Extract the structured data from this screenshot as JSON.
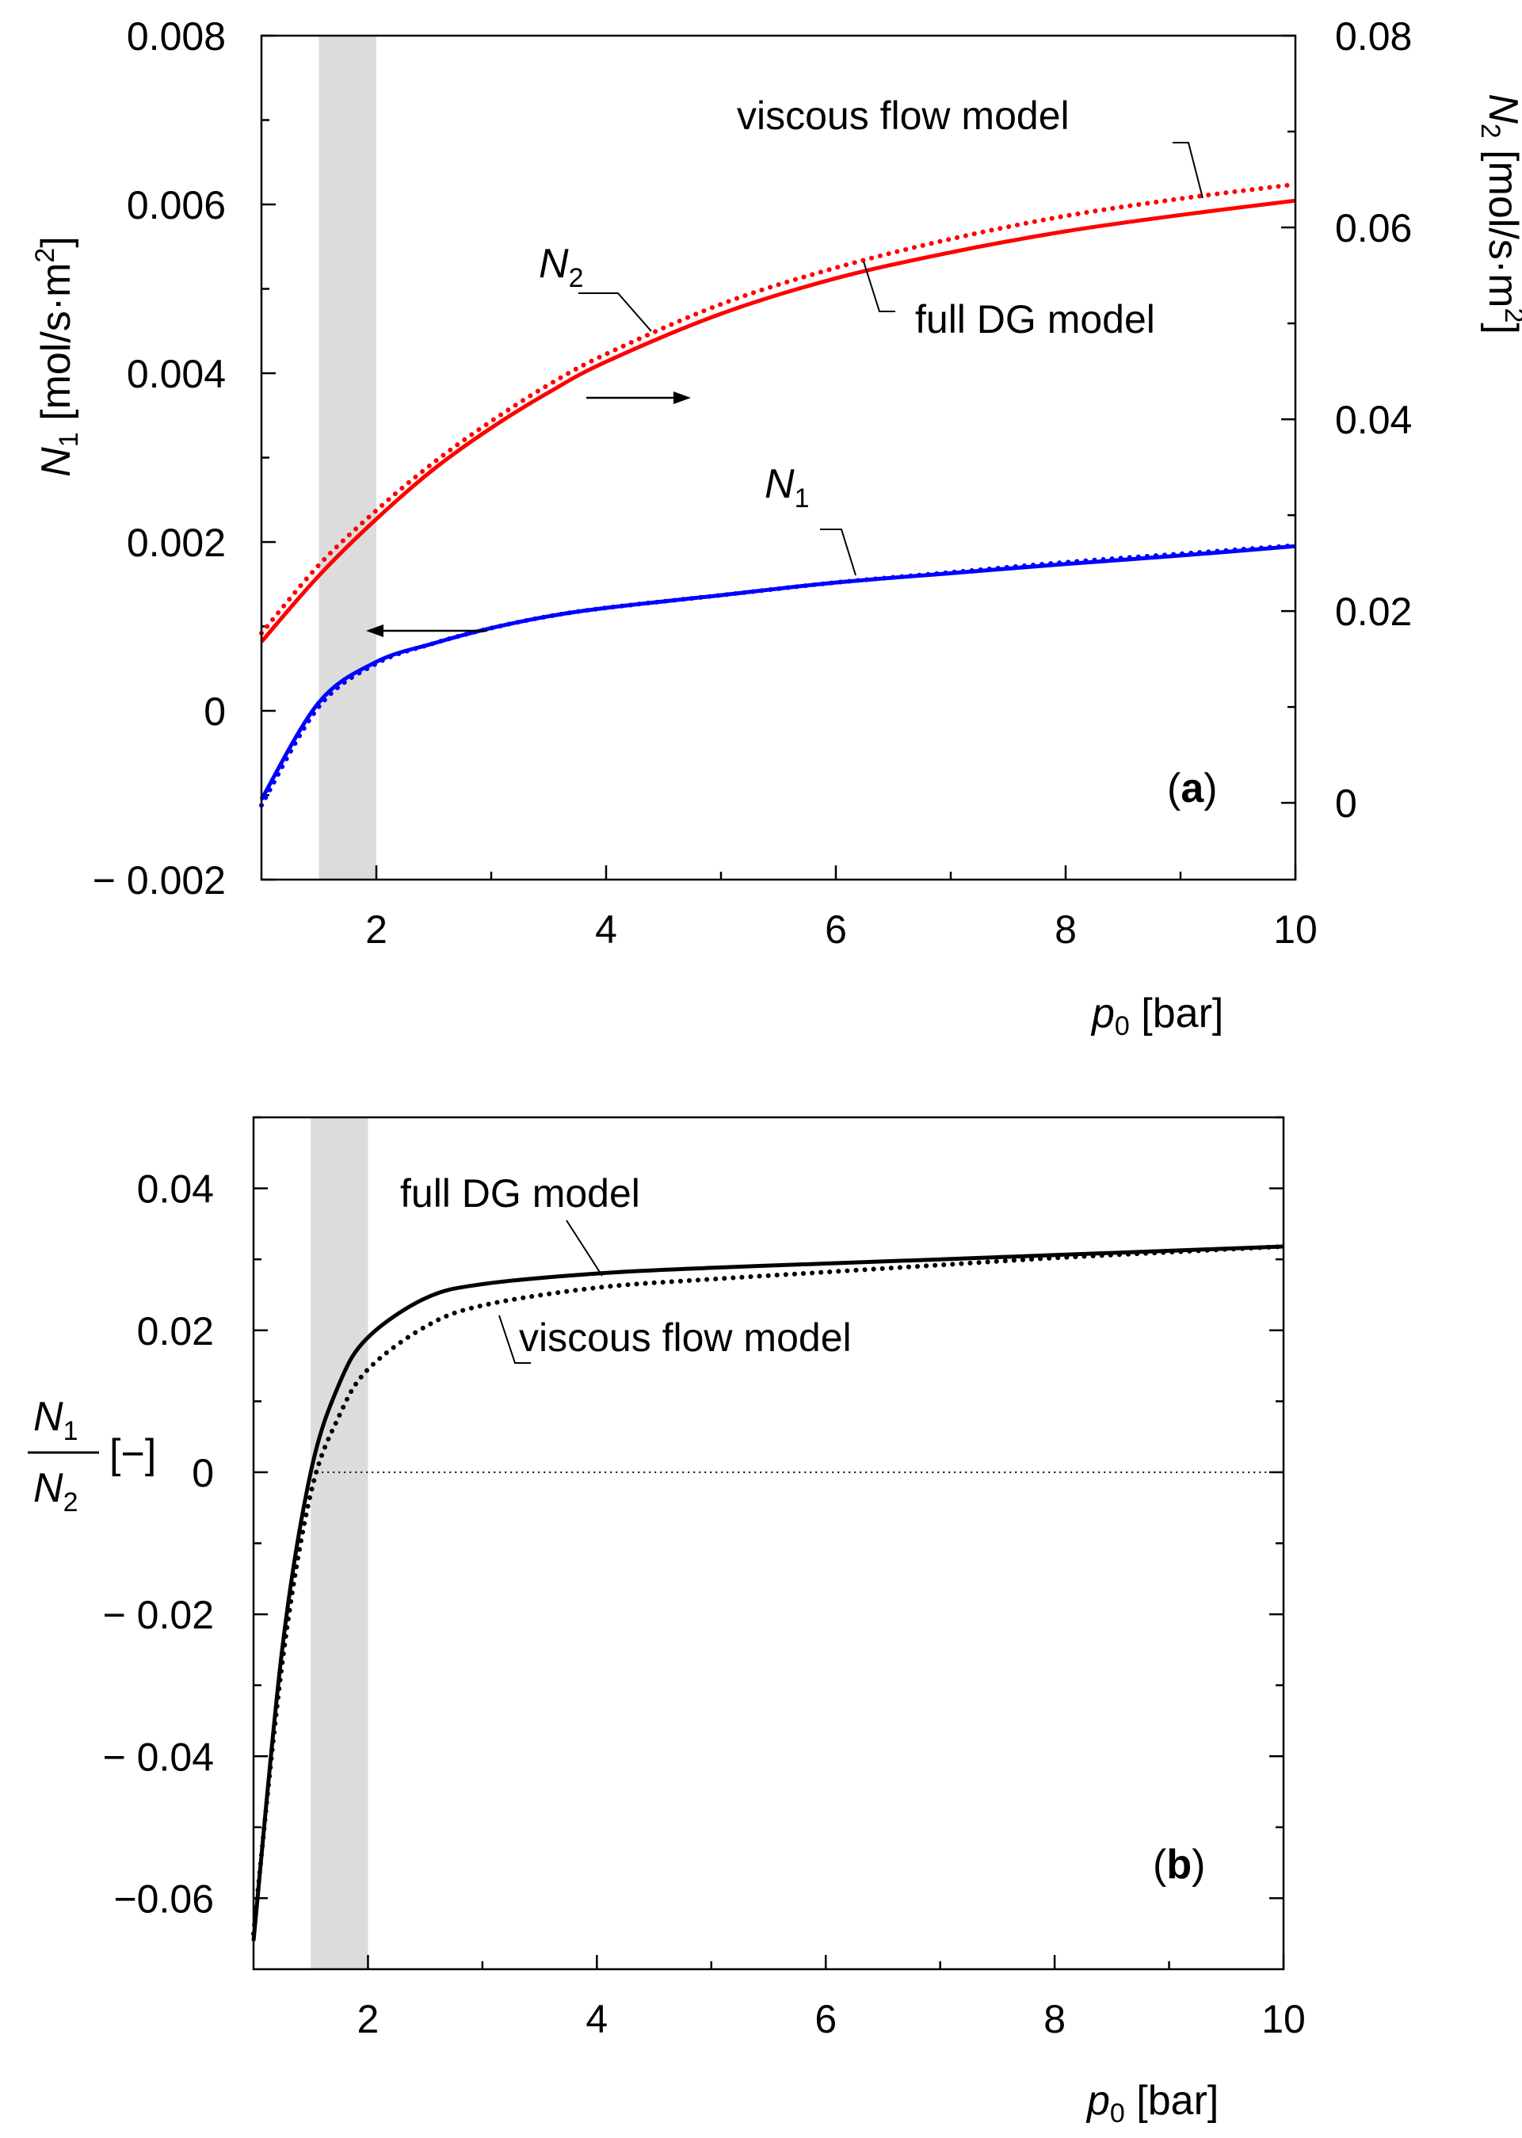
{
  "chart_data": [
    {
      "type": "line",
      "panel_label": "a",
      "panel_label_open": "(",
      "panel_label_close": ")",
      "xlabel_symbol": "p",
      "xlabel_sub": "0",
      "xlabel_unit": " [bar]",
      "xlim": [
        1,
        10
      ],
      "x_ticks": [
        2,
        4,
        6,
        8,
        10
      ],
      "x_tick_labels": [
        "2",
        "4",
        "6",
        "8",
        "10"
      ],
      "ylim_left": [
        -0.002,
        0.008
      ],
      "y_ticks_left": [
        -0.002,
        0,
        0.002,
        0.004,
        0.006,
        0.008
      ],
      "y_tick_labels_left": [
        "− 0.002",
        "0",
        "0.002",
        "0.004",
        "0.006",
        "0.008"
      ],
      "ylabel_left_symbol": "N",
      "ylabel_left_sub": "1",
      "ylabel_left_unit": " [mol/s·m",
      "ylabel_left_sup": "2",
      "ylabel_left_close": "]",
      "ylim_right": [
        -0.008,
        0.08
      ],
      "y_ticks_right": [
        0,
        0.02,
        0.04,
        0.06,
        0.08
      ],
      "y_tick_labels_right": [
        "0",
        "0.02",
        "0.04",
        "0.06",
        "0.08"
      ],
      "ylabel_right_symbol": "N",
      "ylabel_right_sub": "2",
      "ylabel_right_unit": " [mol/s·m",
      "ylabel_right_sup": "2",
      "ylabel_right_close": "]",
      "shaded_band_x": [
        1.5,
        2.0
      ],
      "x": [
        1.0,
        1.5,
        2.0,
        2.5,
        3.0,
        3.5,
        4.0,
        5.0,
        6.0,
        7.0,
        8.0,
        9.0,
        10.0
      ],
      "series": [
        {
          "name": "N1 full DG model",
          "axis": "left",
          "style": "solid",
          "color": "#0000ff",
          "values": [
            -0.00105,
            0.0001,
            0.00058,
            0.0008,
            0.00098,
            0.00112,
            0.00122,
            0.00137,
            0.00152,
            0.00163,
            0.00174,
            0.00184,
            0.00195
          ]
        },
        {
          "name": "N1 viscous flow model",
          "axis": "left",
          "style": "dotted",
          "color": "#0000ff",
          "values": [
            -0.00112,
            5e-05,
            0.00056,
            0.0008,
            0.00098,
            0.00112,
            0.00122,
            0.00137,
            0.00152,
            0.00164,
            0.00176,
            0.00186,
            0.00196
          ]
        },
        {
          "name": "N2 full DG model",
          "axis": "right",
          "style": "solid",
          "color": "#ff0000",
          "values": [
            0.0168,
            0.0237,
            0.0296,
            0.0348,
            0.0391,
            0.0428,
            0.046,
            0.051,
            0.0547,
            0.0574,
            0.0596,
            0.0613,
            0.0628
          ]
        },
        {
          "name": "N2 viscous flow model",
          "axis": "right",
          "style": "dotted",
          "color": "#ff0000",
          "values": [
            0.0177,
            0.0248,
            0.0305,
            0.0355,
            0.0398,
            0.0436,
            0.0468,
            0.052,
            0.0558,
            0.0588,
            0.0612,
            0.063,
            0.0645
          ]
        }
      ],
      "annotations": {
        "viscous": "viscous flow model",
        "full_dg": "full DG model",
        "n2_symbol": "N",
        "n2_sub": "2",
        "n1_symbol": "N",
        "n1_sub": "1"
      },
      "colors": {
        "n1": "#0000ff",
        "n2": "#ff0000",
        "band": "#dcdcdc"
      }
    },
    {
      "type": "line",
      "panel_label": "b",
      "panel_label_open": "(",
      "panel_label_close": ")",
      "xlabel_symbol": "p",
      "xlabel_sub": "0",
      "xlabel_unit": " [bar]",
      "xlim": [
        1,
        10
      ],
      "x_ticks": [
        2,
        4,
        6,
        8,
        10
      ],
      "x_tick_labels": [
        "2",
        "4",
        "6",
        "8",
        "10"
      ],
      "ylim": [
        -0.07,
        0.05
      ],
      "y_ticks": [
        -0.06,
        -0.04,
        -0.02,
        0,
        0.02,
        0.04
      ],
      "y_tick_labels": [
        "−0.06",
        "− 0.04",
        "− 0.02",
        "0",
        "0.02",
        "0.04"
      ],
      "ylabel_num_symbol": "N",
      "ylabel_num_sub": "1",
      "ylabel_den_symbol": "N",
      "ylabel_den_sub": "2",
      "ylabel_unit": "[−]",
      "zero_line": true,
      "shaded_band_x": [
        1.5,
        2.0
      ],
      "x": [
        1.0,
        1.25,
        1.5,
        1.75,
        2.0,
        2.5,
        3.0,
        4.0,
        5.0,
        6.0,
        7.0,
        8.0,
        9.0,
        10.0
      ],
      "series": [
        {
          "name": "full DG model",
          "style": "solid",
          "color": "#000000",
          "values": [
            -0.066,
            -0.025,
            0.0,
            0.0125,
            0.019,
            0.0245,
            0.0265,
            0.028,
            0.0288,
            0.0294,
            0.03,
            0.0306,
            0.0312,
            0.0318
          ]
        },
        {
          "name": "viscous flow model",
          "style": "dotted",
          "color": "#000000",
          "values": [
            -0.065,
            -0.027,
            -0.003,
            0.008,
            0.0145,
            0.0205,
            0.0235,
            0.026,
            0.0272,
            0.0282,
            0.0292,
            0.0302,
            0.031,
            0.0318
          ]
        }
      ],
      "annotations": {
        "full_dg": "full DG model",
        "viscous": "viscous flow model"
      },
      "colors": {
        "line": "#000000",
        "band": "#dcdcdc"
      }
    }
  ]
}
